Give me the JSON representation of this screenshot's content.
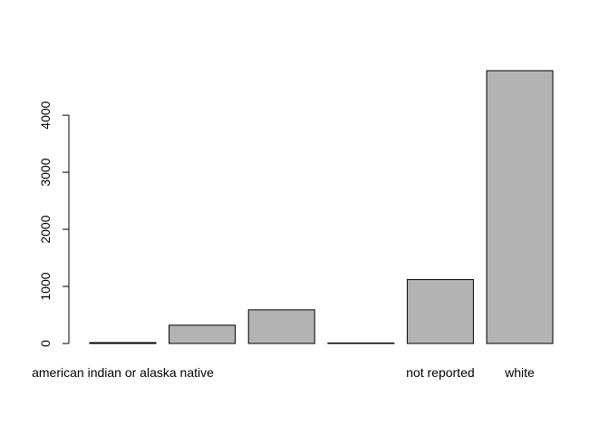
{
  "chart_data": {
    "type": "bar",
    "categories": [
      "american indian or alaska native",
      null,
      null,
      null,
      "not reported",
      "white"
    ],
    "values": [
      15,
      320,
      590,
      8,
      1120,
      4780
    ],
    "color": "#b3b3b3",
    "ylim": [
      0,
      4780
    ],
    "yticks": [
      0,
      1000,
      2000,
      3000,
      4000
    ]
  }
}
